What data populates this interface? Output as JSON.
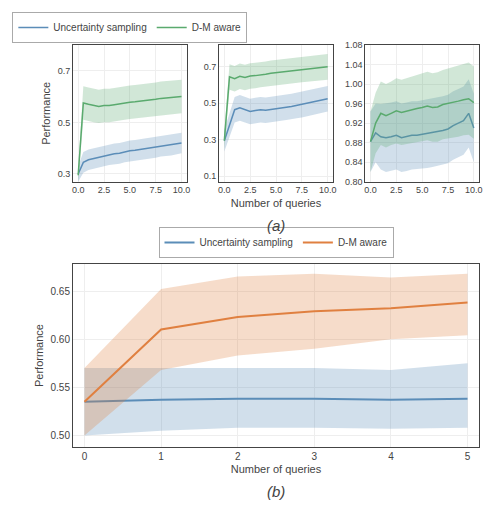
{
  "chart_data": [
    {
      "type": "line",
      "ylabel": "Performance",
      "x": [
        0.0,
        0.5,
        1.0,
        1.5,
        2.0,
        2.5,
        3.0,
        3.5,
        4.0,
        4.5,
        5.0,
        5.5,
        6.0,
        6.5,
        7.0,
        7.5,
        8.0,
        8.5,
        9.0,
        9.5,
        10.0
      ],
      "series": [
        {
          "name": "Uncertainty sampling",
          "color": "#5b8db8",
          "values": [
            0.3,
            0.345,
            0.355,
            0.36,
            0.365,
            0.37,
            0.375,
            0.378,
            0.38,
            0.385,
            0.39,
            0.392,
            0.395,
            0.398,
            0.4,
            0.403,
            0.408,
            0.41,
            0.412,
            0.415,
            0.42
          ],
          "lo": [
            0.27,
            0.305,
            0.315,
            0.32,
            0.325,
            0.33,
            0.335,
            0.338,
            0.34,
            0.345,
            0.35,
            0.352,
            0.355,
            0.358,
            0.36,
            0.363,
            0.368,
            0.37,
            0.372,
            0.375,
            0.38
          ],
          "hi": [
            0.33,
            0.385,
            0.395,
            0.4,
            0.405,
            0.41,
            0.415,
            0.418,
            0.42,
            0.425,
            0.43,
            0.432,
            0.435,
            0.438,
            0.44,
            0.443,
            0.448,
            0.45,
            0.452,
            0.455,
            0.46
          ]
        },
        {
          "name": "D-M aware",
          "color": "#5aaa6e",
          "values": [
            0.295,
            0.575,
            0.57,
            0.565,
            0.562,
            0.565,
            0.565,
            0.568,
            0.572,
            0.575,
            0.578,
            0.58,
            0.582,
            0.585,
            0.587,
            0.59,
            0.593,
            0.595,
            0.597,
            0.598,
            0.6
          ],
          "lo": [
            0.27,
            0.51,
            0.505,
            0.5,
            0.498,
            0.5,
            0.5,
            0.503,
            0.507,
            0.51,
            0.513,
            0.515,
            0.517,
            0.52,
            0.522,
            0.525,
            0.528,
            0.53,
            0.532,
            0.533,
            0.535
          ],
          "hi": [
            0.32,
            0.64,
            0.635,
            0.63,
            0.626,
            0.63,
            0.63,
            0.633,
            0.637,
            0.64,
            0.643,
            0.645,
            0.647,
            0.65,
            0.652,
            0.655,
            0.658,
            0.66,
            0.662,
            0.663,
            0.665
          ]
        }
      ],
      "xlim": [
        -0.5,
        10.5
      ],
      "xticks": [
        {
          "value": 0.0,
          "label": "0.0"
        },
        2.5,
        {
          "value": 5.0,
          "label": "5.0"
        },
        7.5,
        {
          "value": 10.0,
          "label": "10.0"
        }
      ],
      "ylim": [
        0.27,
        0.8
      ],
      "yticks": [
        0.3,
        0.5,
        0.7
      ],
      "legend": "top"
    },
    {
      "type": "line",
      "xlabel": "Number of queries",
      "annotations": [
        "(a)"
      ],
      "x": [
        0.0,
        0.5,
        1.0,
        1.5,
        2.0,
        2.5,
        3.0,
        3.5,
        4.0,
        4.5,
        5.0,
        5.5,
        6.0,
        6.5,
        7.0,
        7.5,
        8.0,
        8.5,
        9.0,
        9.5,
        10.0
      ],
      "series": [
        {
          "name": "Uncertainty sampling",
          "color": "#5b8db8",
          "values": [
            0.295,
            0.385,
            0.465,
            0.475,
            0.465,
            0.455,
            0.46,
            0.465,
            0.462,
            0.465,
            0.47,
            0.475,
            0.478,
            0.482,
            0.488,
            0.492,
            0.498,
            0.505,
            0.51,
            0.518,
            0.525
          ],
          "lo": [
            0.235,
            0.32,
            0.395,
            0.405,
            0.395,
            0.385,
            0.39,
            0.395,
            0.392,
            0.395,
            0.4,
            0.405,
            0.408,
            0.412,
            0.418,
            0.422,
            0.428,
            0.435,
            0.44,
            0.448,
            0.455
          ],
          "hi": [
            0.355,
            0.45,
            0.535,
            0.545,
            0.535,
            0.525,
            0.53,
            0.535,
            0.532,
            0.535,
            0.54,
            0.545,
            0.548,
            0.552,
            0.558,
            0.562,
            0.568,
            0.575,
            0.58,
            0.588,
            0.595
          ]
        },
        {
          "name": "D-M aware",
          "color": "#5aaa6e",
          "values": [
            0.295,
            0.645,
            0.635,
            0.648,
            0.642,
            0.65,
            0.652,
            0.658,
            0.66,
            0.665,
            0.668,
            0.672,
            0.675,
            0.678,
            0.682,
            0.685,
            0.688,
            0.692,
            0.695,
            0.698,
            0.7
          ],
          "lo": [
            0.25,
            0.575,
            0.565,
            0.578,
            0.572,
            0.58,
            0.582,
            0.588,
            0.59,
            0.595,
            0.598,
            0.602,
            0.605,
            0.608,
            0.612,
            0.615,
            0.618,
            0.622,
            0.625,
            0.628,
            0.63
          ],
          "hi": [
            0.34,
            0.715,
            0.705,
            0.718,
            0.712,
            0.72,
            0.722,
            0.728,
            0.73,
            0.735,
            0.738,
            0.742,
            0.745,
            0.748,
            0.752,
            0.755,
            0.758,
            0.762,
            0.765,
            0.768,
            0.77
          ]
        }
      ],
      "xlim": [
        -0.5,
        10.5
      ],
      "xticks": [
        {
          "value": 0.0,
          "label": "0.0"
        },
        2.5,
        {
          "value": 5.0,
          "label": "5.0"
        },
        7.5,
        {
          "value": 10.0,
          "label": "10.0"
        }
      ],
      "ylim": [
        0.07,
        0.82
      ],
      "yticks": [
        0.1,
        0.3,
        0.5,
        0.7
      ]
    },
    {
      "type": "line",
      "x": [
        0.0,
        0.5,
        1.0,
        1.5,
        2.0,
        2.5,
        3.0,
        3.5,
        4.0,
        4.5,
        5.0,
        5.5,
        6.0,
        6.5,
        7.0,
        7.5,
        8.0,
        8.5,
        9.0,
        9.5,
        10.0
      ],
      "series": [
        {
          "name": "Uncertainty sampling",
          "color": "#5b8db8",
          "values": [
            0.882,
            0.9,
            0.892,
            0.89,
            0.892,
            0.895,
            0.89,
            0.892,
            0.895,
            0.895,
            0.897,
            0.898,
            0.9,
            0.902,
            0.905,
            0.908,
            0.915,
            0.92,
            0.925,
            0.94,
            0.91
          ],
          "lo": [
            0.82,
            0.84,
            0.825,
            0.82,
            0.822,
            0.825,
            0.82,
            0.822,
            0.825,
            0.825,
            0.827,
            0.828,
            0.83,
            0.832,
            0.835,
            0.838,
            0.845,
            0.85,
            0.855,
            0.87,
            0.84
          ],
          "hi": [
            0.944,
            0.96,
            0.959,
            0.96,
            0.962,
            0.965,
            0.96,
            0.962,
            0.965,
            0.965,
            0.967,
            0.968,
            0.97,
            0.972,
            0.975,
            0.978,
            0.985,
            0.99,
            0.995,
            1.01,
            0.98
          ]
        },
        {
          "name": "D-M aware",
          "color": "#5aaa6e",
          "values": [
            0.882,
            0.92,
            0.94,
            0.935,
            0.94,
            0.945,
            0.942,
            0.945,
            0.948,
            0.95,
            0.952,
            0.955,
            0.952,
            0.953,
            0.958,
            0.96,
            0.962,
            0.965,
            0.968,
            0.97,
            0.962
          ],
          "lo": [
            0.82,
            0.858,
            0.875,
            0.87,
            0.875,
            0.878,
            0.875,
            0.878,
            0.88,
            0.882,
            0.883,
            0.885,
            0.882,
            0.882,
            0.887,
            0.888,
            0.89,
            0.892,
            0.895,
            0.896,
            0.888
          ],
          "hi": [
            0.944,
            0.982,
            1.005,
            1.0,
            1.005,
            1.012,
            1.009,
            1.012,
            1.016,
            1.018,
            1.021,
            1.025,
            1.022,
            1.024,
            1.029,
            1.032,
            1.034,
            1.038,
            1.041,
            1.044,
            1.036
          ]
        }
      ],
      "xlim": [
        -0.5,
        10.5
      ],
      "xticks": [
        {
          "value": 0.0,
          "label": "0.0"
        },
        2.5,
        {
          "value": 5.0,
          "label": "5.0"
        },
        7.5,
        {
          "value": 10.0,
          "label": "10.0"
        }
      ],
      "ylim": [
        0.8,
        1.08
      ],
      "yticks": [
        {
          "value": 0.8,
          "label": "0.80"
        },
        0.84,
        0.88,
        0.92,
        0.96,
        {
          "value": 1.0,
          "label": "1.00"
        },
        1.04,
        1.08
      ]
    },
    {
      "type": "line",
      "xlabel": "Number of queries",
      "ylabel": "Performance",
      "annotations": [
        "(b)"
      ],
      "x": [
        0,
        1,
        2,
        3,
        4,
        5
      ],
      "series": [
        {
          "name": "Uncertainty sampling",
          "color": "#5b8db8",
          "values": [
            0.535,
            0.537,
            0.538,
            0.538,
            0.537,
            0.538
          ],
          "lo": [
            0.5,
            0.505,
            0.508,
            0.508,
            0.507,
            0.508
          ],
          "hi": [
            0.57,
            0.57,
            0.57,
            0.57,
            0.568,
            0.575
          ]
        },
        {
          "name": "D-M aware",
          "color": "#e08040",
          "values": [
            0.535,
            0.61,
            0.623,
            0.629,
            0.632,
            0.638
          ],
          "lo": [
            0.5,
            0.568,
            0.583,
            0.59,
            0.6,
            0.604
          ],
          "hi": [
            0.57,
            0.652,
            0.665,
            0.668,
            0.664,
            0.668
          ]
        }
      ],
      "xlim": [
        -0.15,
        5.15
      ],
      "xticks": [
        0,
        1,
        2,
        3,
        4,
        5
      ],
      "ylim": [
        0.488,
        0.678
      ],
      "yticks": [
        {
          "value": 0.5,
          "label": "0.50"
        },
        0.55,
        {
          "value": 0.6,
          "label": "0.60"
        },
        0.65
      ],
      "legend": "top"
    }
  ]
}
